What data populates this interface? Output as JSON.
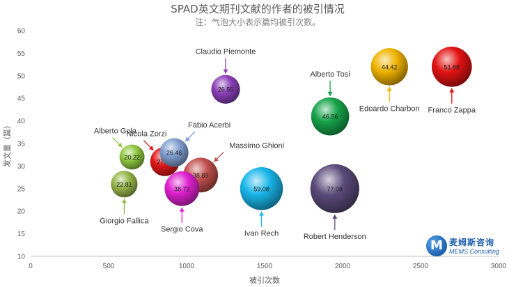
{
  "chart_data": {
    "type": "bubble",
    "title": "SPAD英文期刊文献的作者的被引情况",
    "subtitle": "注：气泡大小表示篇均被引次数。",
    "xlabel": "被引次数",
    "ylabel": "发文量（篇）",
    "xlim": [
      0,
      3000
    ],
    "ylim": [
      10,
      60
    ],
    "xticks": [
      "0",
      "500",
      "1000",
      "1500",
      "2000",
      "2500",
      "3000"
    ],
    "yticks": [
      "10",
      "15",
      "20",
      "25",
      "30",
      "35",
      "40",
      "45",
      "50",
      "55",
      "60"
    ],
    "grid": false,
    "series": [
      {
        "name": "Franco Zappa",
        "x": 2700,
        "y": 52,
        "size": 51.88,
        "color": "#e21212"
      },
      {
        "name": "Edoardo Charbon",
        "x": 2300,
        "y": 52,
        "size": 44.42,
        "color": "#f0b400"
      },
      {
        "name": "Alberto Tosi",
        "x": 1920,
        "y": 41,
        "size": 46.56,
        "color": "#16a34a"
      },
      {
        "name": "Robert Henderson",
        "x": 1950,
        "y": 25,
        "size": 77.08,
        "color": "#5b4a7a"
      },
      {
        "name": "Ivan Rech",
        "x": 1480,
        "y": 25,
        "size": 59.08,
        "color": "#19b6ea"
      },
      {
        "name": "Claudio Piemonte",
        "x": 1250,
        "y": 47,
        "size": 26.55,
        "color": "#8b3fb8"
      },
      {
        "name": "Massimo Ghioni",
        "x": 1090,
        "y": 28,
        "size": 38.89,
        "color": "#c0504d"
      },
      {
        "name": "Fabio Acerbi",
        "x": 920,
        "y": 33,
        "size": 26.46,
        "color": "#7f9fcf"
      },
      {
        "name": "Nicola Zorzi",
        "x": 860,
        "y": 31,
        "size": 27.38,
        "color": "#e01818"
      },
      {
        "name": "Sergio Cova",
        "x": 970,
        "y": 25,
        "size": 38.72,
        "color": "#e020d0"
      },
      {
        "name": "Alberto Gola",
        "x": 650,
        "y": 32,
        "size": 20.22,
        "color": "#8fc83f"
      },
      {
        "name": "Giorgio Fallica",
        "x": 600,
        "y": 26,
        "size": 22.81,
        "color": "#98b64a"
      }
    ]
  },
  "logo": {
    "badge": "M",
    "cn": "麦姆斯咨询",
    "en": "MEMS Consulting"
  }
}
